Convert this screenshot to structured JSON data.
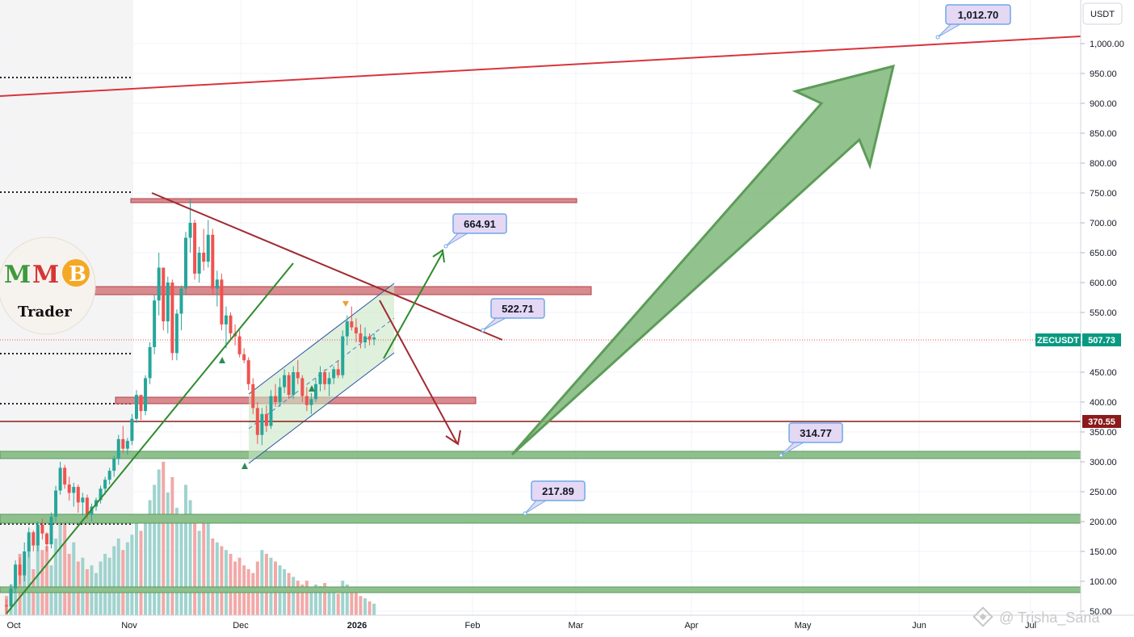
{
  "chart_data": {
    "type": "candlestick",
    "symbol": "ZECUSDT",
    "currency": "USDT",
    "y_ticks": [
      50,
      100,
      150,
      200,
      250,
      300,
      350,
      400,
      450,
      500,
      550,
      600,
      650,
      700,
      750,
      800,
      850,
      900,
      950,
      1000
    ],
    "y_tick_labels": [
      "50.00",
      "100.00",
      "150.00",
      "200.00",
      "250.00",
      "300.00",
      "350.00",
      "400.00",
      "450.00",
      "500.00",
      "550.00",
      "600.00",
      "650.00",
      "700.00",
      "750.00",
      "800.00",
      "850.00",
      "900.00",
      "950.00",
      "1,000.00"
    ],
    "x_ticks": [
      "Oct",
      "Nov",
      "Dec",
      "2026",
      "Feb",
      "Mar",
      "Apr",
      "May",
      "Jun",
      "Jul"
    ],
    "current_price": 507.73,
    "current_price_label": "507.73",
    "level_tag_label": "370.55",
    "level_tag_value": 370.55,
    "targets": [
      {
        "label": "1,012.70",
        "value": 1012.7
      },
      {
        "label": "664.91",
        "value": 664.91
      },
      {
        "label": "522.71",
        "value": 522.71
      },
      {
        "label": "314.77",
        "value": 314.77
      },
      {
        "label": "217.89",
        "value": 217.89
      }
    ],
    "support_zones": [
      [
        310,
        320
      ],
      [
        203,
        215
      ],
      [
        90,
        97
      ]
    ],
    "resistance_zones": [
      [
        578,
        592
      ],
      [
        398,
        408
      ],
      [
        735,
        740
      ]
    ],
    "candles_ohlc": [
      [
        60,
        70,
        45,
        58
      ],
      [
        58,
        95,
        52,
        88
      ],
      [
        88,
        135,
        80,
        128
      ],
      [
        128,
        140,
        95,
        110
      ],
      [
        110,
        165,
        100,
        150
      ],
      [
        150,
        190,
        140,
        182
      ],
      [
        182,
        185,
        150,
        160
      ],
      [
        160,
        200,
        150,
        195
      ],
      [
        195,
        205,
        170,
        180
      ],
      [
        180,
        182,
        150,
        162
      ],
      [
        162,
        215,
        155,
        208
      ],
      [
        208,
        260,
        200,
        252
      ],
      [
        252,
        300,
        245,
        290
      ],
      [
        290,
        295,
        255,
        262
      ],
      [
        262,
        275,
        235,
        248
      ],
      [
        248,
        265,
        225,
        258
      ],
      [
        258,
        262,
        215,
        232
      ],
      [
        232,
        248,
        210,
        240
      ],
      [
        240,
        245,
        205,
        212
      ],
      [
        212,
        230,
        200,
        225
      ],
      [
        225,
        240,
        218,
        236
      ],
      [
        236,
        260,
        230,
        255
      ],
      [
        255,
        275,
        245,
        270
      ],
      [
        270,
        290,
        262,
        285
      ],
      [
        285,
        310,
        275,
        305
      ],
      [
        305,
        345,
        295,
        338
      ],
      [
        338,
        360,
        315,
        322
      ],
      [
        322,
        340,
        312,
        335
      ],
      [
        335,
        380,
        328,
        372
      ],
      [
        372,
        420,
        365,
        412
      ],
      [
        412,
        405,
        370,
        385
      ],
      [
        385,
        445,
        378,
        440
      ],
      [
        440,
        500,
        430,
        492
      ],
      [
        492,
        580,
        480,
        570
      ],
      [
        570,
        650,
        545,
        625
      ],
      [
        625,
        620,
        520,
        535
      ],
      [
        535,
        610,
        515,
        600
      ],
      [
        600,
        605,
        470,
        482
      ],
      [
        482,
        555,
        470,
        548
      ],
      [
        548,
        595,
        520,
        590
      ],
      [
        590,
        685,
        580,
        675
      ],
      [
        675,
        740,
        650,
        700
      ],
      [
        700,
        705,
        605,
        615
      ],
      [
        615,
        660,
        600,
        650
      ],
      [
        650,
        690,
        620,
        635
      ],
      [
        635,
        705,
        625,
        680
      ],
      [
        680,
        690,
        580,
        590
      ],
      [
        590,
        620,
        560,
        605
      ],
      [
        605,
        615,
        520,
        530
      ],
      [
        530,
        560,
        490,
        545
      ],
      [
        545,
        550,
        505,
        515
      ],
      [
        515,
        530,
        495,
        510
      ],
      [
        510,
        520,
        475,
        480
      ],
      [
        480,
        490,
        465,
        470
      ],
      [
        470,
        475,
        420,
        430
      ],
      [
        430,
        440,
        380,
        390
      ],
      [
        390,
        400,
        330,
        345
      ],
      [
        345,
        390,
        328,
        380
      ],
      [
        380,
        395,
        350,
        360
      ],
      [
        360,
        420,
        355,
        410
      ],
      [
        410,
        430,
        392,
        400
      ],
      [
        400,
        440,
        392,
        425
      ],
      [
        425,
        455,
        415,
        445
      ],
      [
        445,
        450,
        405,
        412
      ],
      [
        412,
        460,
        405,
        450
      ],
      [
        450,
        470,
        430,
        440
      ],
      [
        440,
        445,
        400,
        410
      ],
      [
        410,
        425,
        385,
        395
      ],
      [
        395,
        415,
        380,
        405
      ],
      [
        405,
        440,
        400,
        430
      ],
      [
        430,
        460,
        418,
        450
      ],
      [
        450,
        455,
        420,
        430
      ],
      [
        430,
        450,
        410,
        440
      ],
      [
        440,
        460,
        430,
        455
      ],
      [
        455,
        470,
        440,
        445
      ],
      [
        445,
        520,
        440,
        510
      ],
      [
        510,
        545,
        495,
        535
      ],
      [
        535,
        560,
        520,
        525
      ],
      [
        525,
        540,
        500,
        515
      ],
      [
        515,
        530,
        490,
        500
      ],
      [
        500,
        525,
        490,
        510
      ],
      [
        510,
        515,
        495,
        505
      ],
      [
        505,
        515,
        495,
        508
      ]
    ],
    "volumes": [
      25,
      40,
      55,
      80,
      70,
      95,
      60,
      110,
      85,
      90,
      65,
      100,
      130,
      120,
      80,
      95,
      70,
      75,
      60,
      65,
      55,
      70,
      80,
      75,
      90,
      100,
      85,
      95,
      105,
      120,
      110,
      125,
      150,
      170,
      190,
      200,
      160,
      180,
      140,
      130,
      170,
      150,
      120,
      110,
      130,
      125,
      100,
      95,
      90,
      85,
      80,
      70,
      75,
      65,
      60,
      55,
      70,
      85,
      80,
      75,
      70,
      65,
      60,
      55,
      50,
      45,
      40,
      45,
      35,
      40,
      38,
      42,
      35,
      30,
      28,
      45,
      40,
      35,
      30,
      25,
      22,
      18,
      15
    ]
  },
  "watermark": {
    "brand": "@ Trisha_Sana"
  },
  "logo": {
    "letters": "MMB",
    "sub": "Trader"
  },
  "colors": {
    "up": "#26a69a",
    "down": "#ef5350",
    "red_line": "#d9343b",
    "green_arrow": "#4c9a4c",
    "support": "#6fad6f",
    "resistance": "#c05055",
    "tag_green": "#089981",
    "tag_red": "#8b1a1a"
  }
}
